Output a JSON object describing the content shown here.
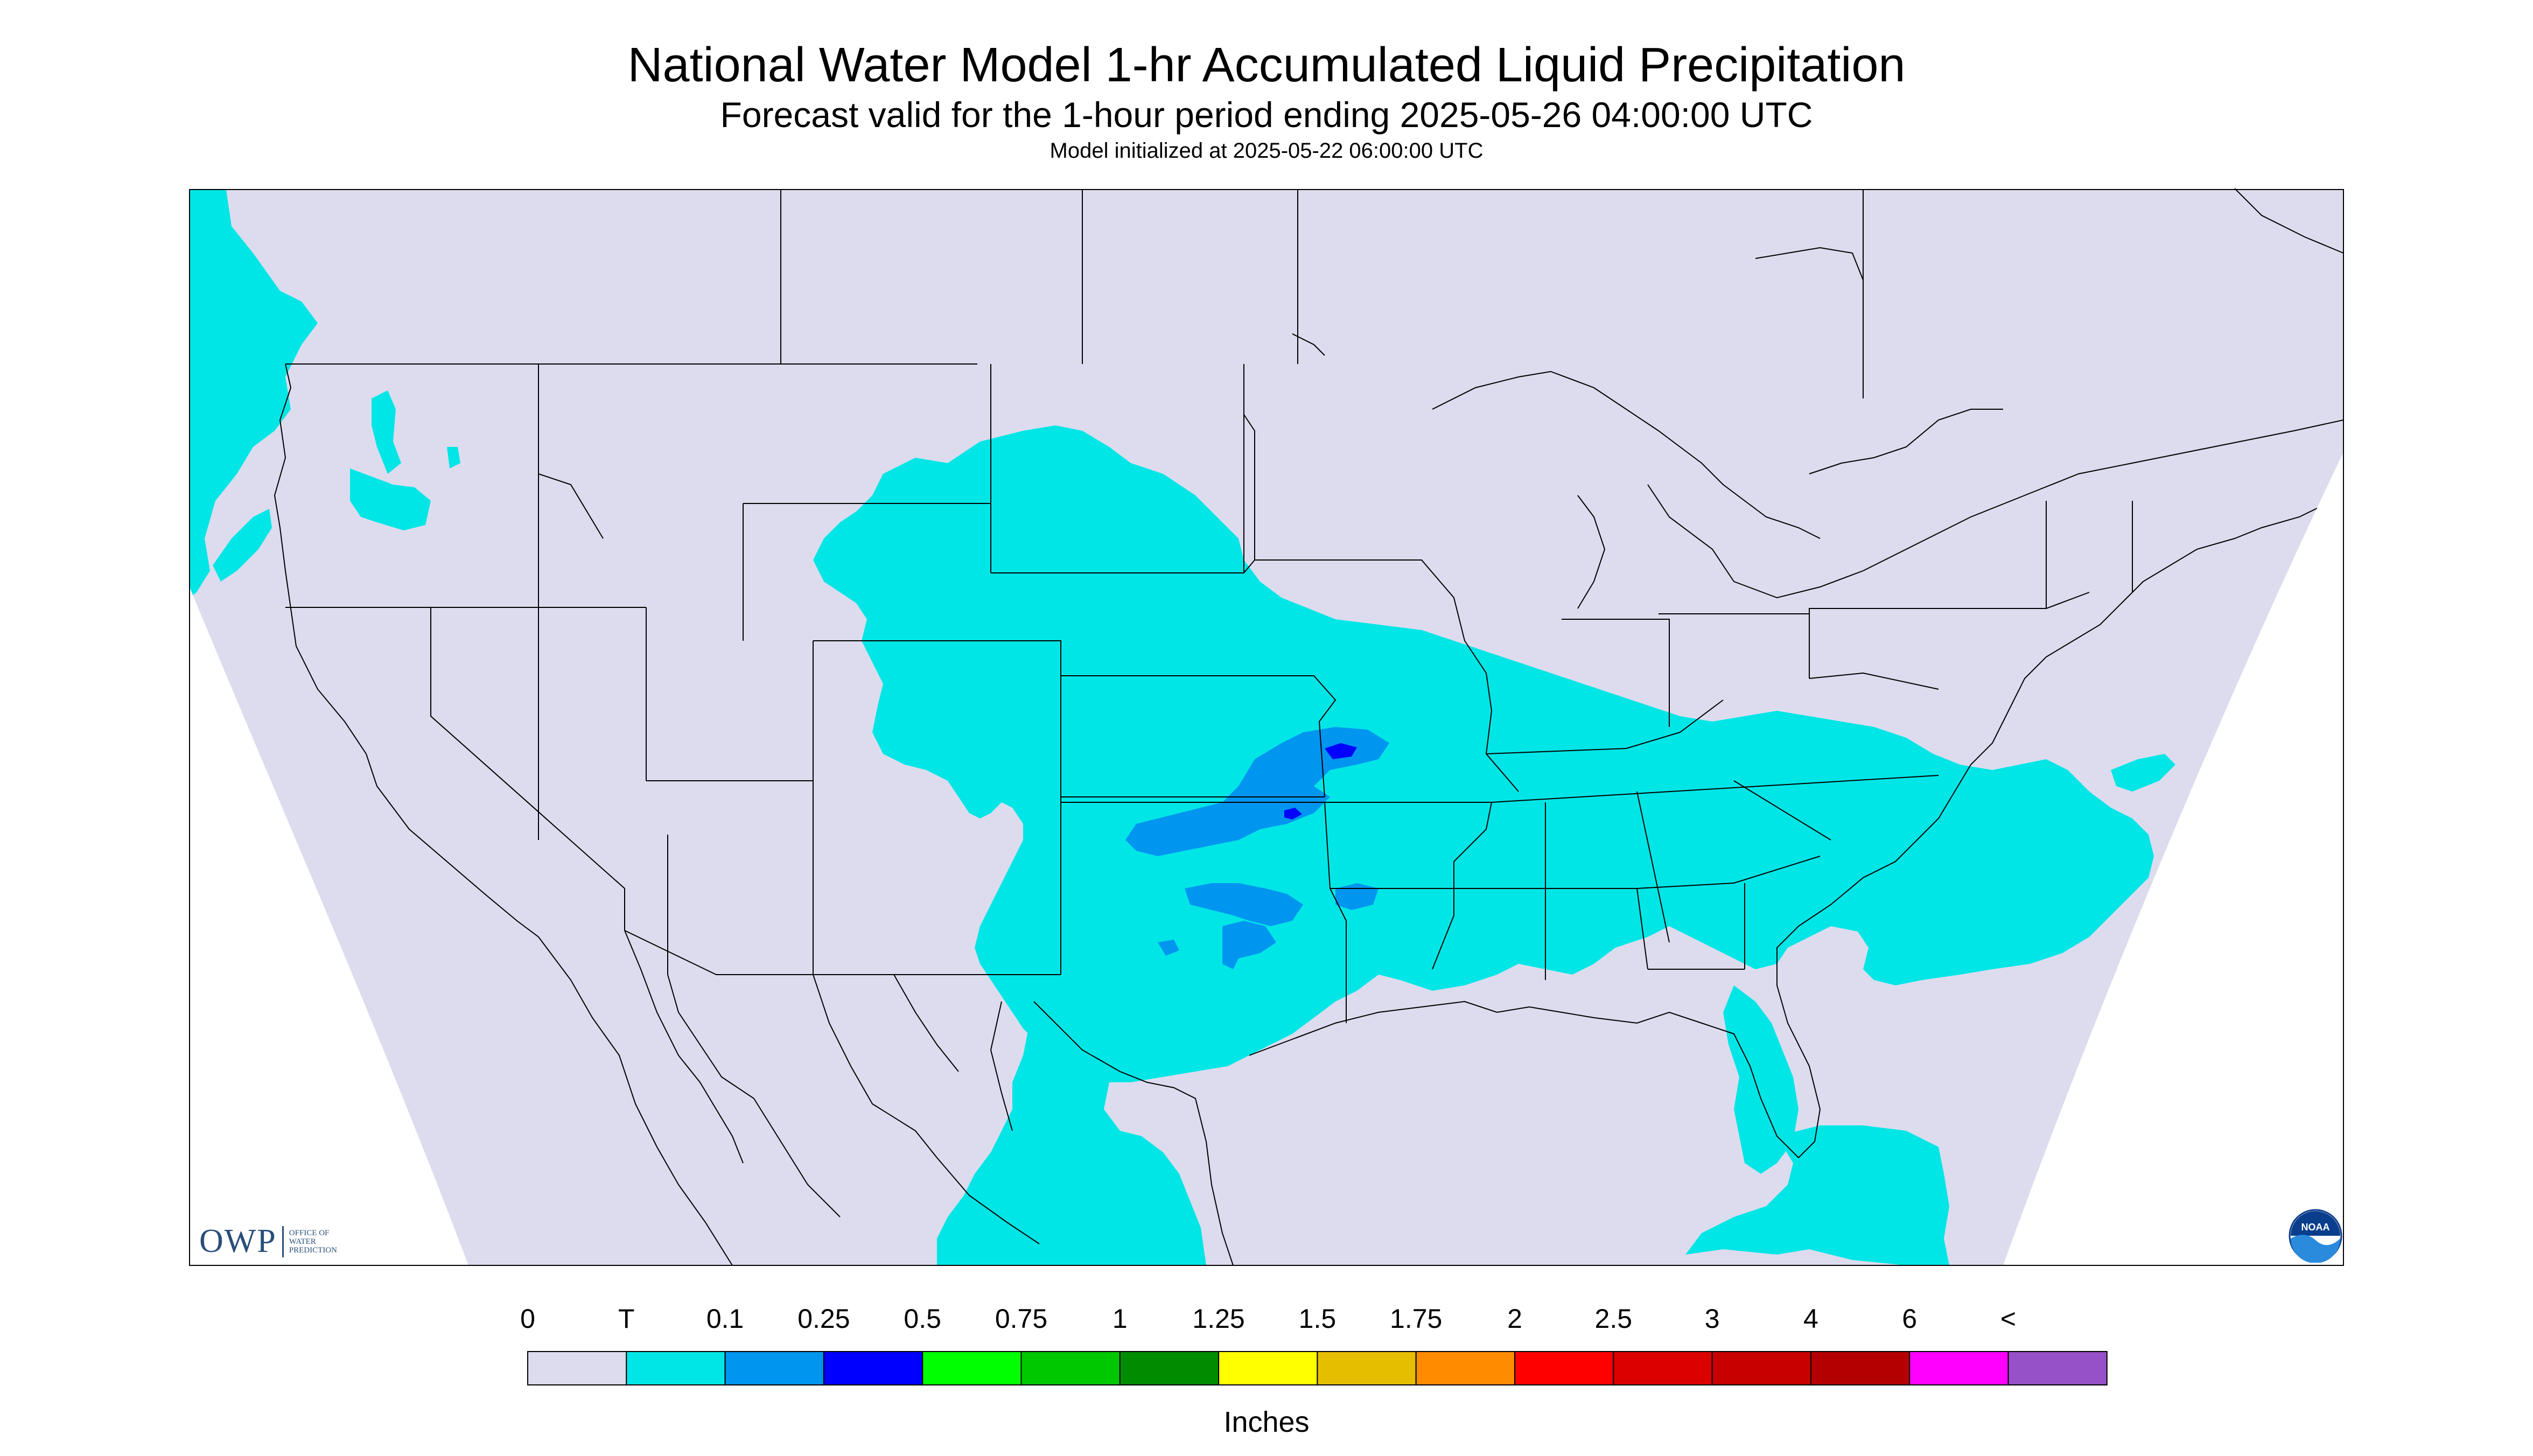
{
  "header": {
    "title": "National Water Model 1-hr Accumulated Liquid Precipitation",
    "subtitle": "Forecast valid for the 1-hour period ending 2025-05-26 04:00:00 UTC",
    "init": "Model initialized at 2025-05-22 06:00:00 UTC"
  },
  "map": {
    "background_color": "#dcdcee",
    "outside_color": "#ffffff",
    "boundary_color": "#000000"
  },
  "legend": {
    "units": "Inches",
    "labels": [
      "0",
      "T",
      "0.1",
      "0.25",
      "0.5",
      "0.75",
      "1",
      "1.25",
      "1.5",
      "1.75",
      "2",
      "2.5",
      "3",
      "4",
      "6",
      "<"
    ],
    "colors": [
      "#dcdcee",
      "#00e6e6",
      "#0096f0",
      "#0000ff",
      "#00ff00",
      "#00c800",
      "#008c00",
      "#ffff00",
      "#e6be00",
      "#ff8c00",
      "#ff0000",
      "#dc0000",
      "#c80000",
      "#b40000",
      "#ff00ff",
      "#9650c8"
    ]
  },
  "branding": {
    "owp_mark": "OWP",
    "owp_line1": "OFFICE OF",
    "owp_line2": "WATER",
    "owp_line3": "PREDICTION",
    "noaa": "NOAA"
  }
}
